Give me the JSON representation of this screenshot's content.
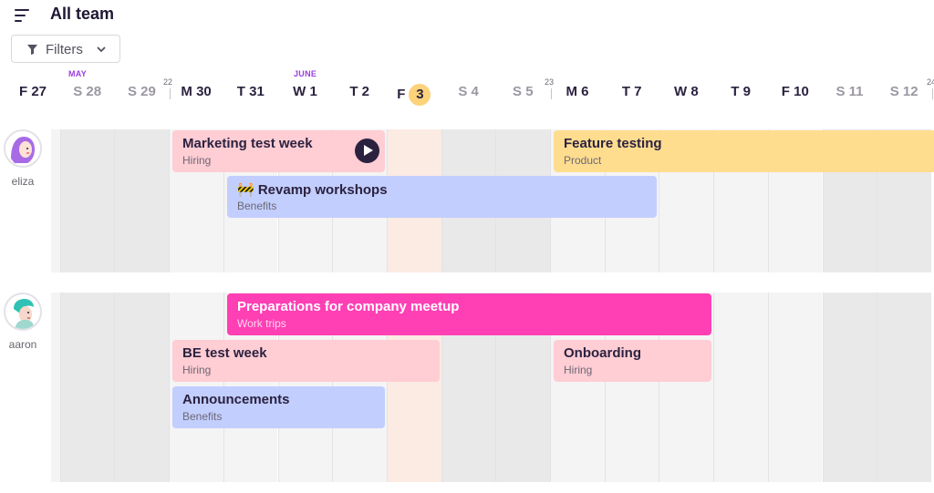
{
  "header": {
    "title": "All team",
    "filters_label": "Filters"
  },
  "calendar": {
    "months": [
      "MAY",
      "JUNE"
    ],
    "weeks": [
      "22",
      "23",
      "24"
    ],
    "days": [
      {
        "label": "F 27",
        "kind": "weekday"
      },
      {
        "label": "S 28",
        "kind": "weekend"
      },
      {
        "label": "S 29",
        "kind": "weekend"
      },
      {
        "label": "M 30",
        "kind": "weekday"
      },
      {
        "label": "T 31",
        "kind": "weekday"
      },
      {
        "label": "W 1",
        "kind": "weekday"
      },
      {
        "label": "T 2",
        "kind": "weekday"
      },
      {
        "label": "F",
        "day": "3",
        "kind": "today"
      },
      {
        "label": "S 4",
        "kind": "weekend"
      },
      {
        "label": "S 5",
        "kind": "weekend"
      },
      {
        "label": "M 6",
        "kind": "weekday"
      },
      {
        "label": "T 7",
        "kind": "weekday"
      },
      {
        "label": "W 8",
        "kind": "weekday"
      },
      {
        "label": "T 9",
        "kind": "weekday"
      },
      {
        "label": "F 10",
        "kind": "weekday"
      },
      {
        "label": "S 11",
        "kind": "weekend"
      },
      {
        "label": "S 12",
        "kind": "weekend"
      }
    ]
  },
  "users": [
    {
      "name": "eliza",
      "events": [
        {
          "title": "Marketing test week",
          "category": "Hiring",
          "color": "#ffcdd4",
          "text": "#2b2240",
          "sub_color": "#6d6875",
          "has_play": true
        },
        {
          "title": "Feature testing",
          "category": "Product",
          "color": "#ffdd8f",
          "text": "#2b2240",
          "sub_color": "#6d6875"
        },
        {
          "title": "🚧 Revamp workshops",
          "category": "Benefits",
          "color": "#c2cefd",
          "text": "#2b2240",
          "sub_color": "#6d6875"
        }
      ]
    },
    {
      "name": "aaron",
      "events": [
        {
          "title": "Preparations for company meetup",
          "category": "Work trips",
          "color": "#ff3fb4",
          "text": "#ffffff",
          "sub_color": "#ffd6ee"
        },
        {
          "title": "BE test week",
          "category": "Hiring",
          "color": "#ffcdd4",
          "text": "#2b2240",
          "sub_color": "#6d6875"
        },
        {
          "title": "Onboarding",
          "category": "Hiring",
          "color": "#ffcdd4",
          "text": "#2b2240",
          "sub_color": "#6d6875"
        },
        {
          "title": "Announcements",
          "category": "Benefits",
          "color": "#c2cefd",
          "text": "#2b2240",
          "sub_color": "#6d6875"
        }
      ]
    }
  ]
}
